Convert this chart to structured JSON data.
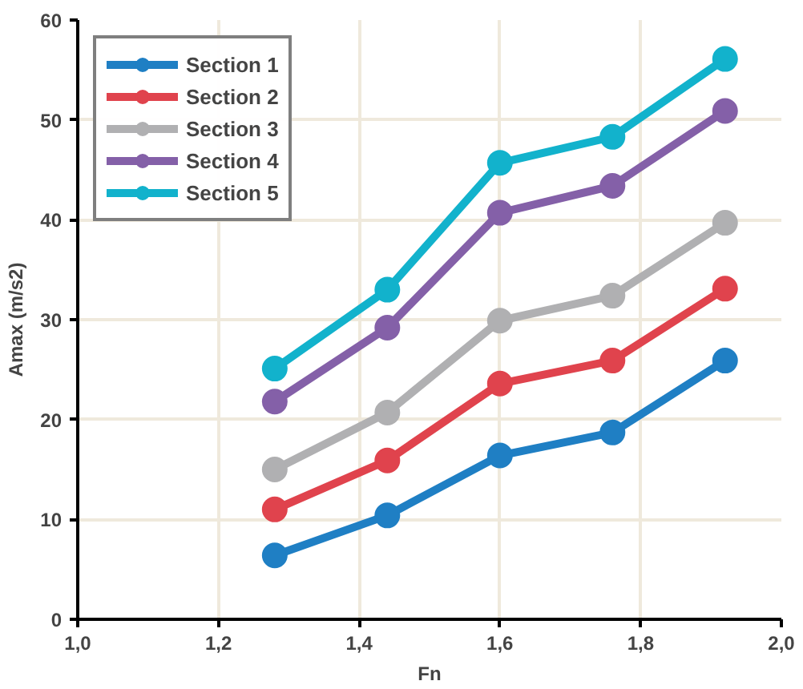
{
  "chart_data": {
    "type": "line",
    "xlabel": "Fn",
    "ylabel": "Amax (m/s2)",
    "x": [
      1.28,
      1.44,
      1.6,
      1.76,
      1.92
    ],
    "series": [
      {
        "name": "Section 1",
        "color": "#1f7fc4",
        "values": [
          6.4,
          10.4,
          16.4,
          18.7,
          25.9
        ]
      },
      {
        "name": "Section 2",
        "color": "#e0434d",
        "values": [
          11.0,
          15.9,
          23.6,
          25.9,
          33.1
        ]
      },
      {
        "name": "Section 3",
        "color": "#b0b0b2",
        "values": [
          15.0,
          20.7,
          29.9,
          32.4,
          39.7
        ]
      },
      {
        "name": "Section 4",
        "color": "#8460a8",
        "values": [
          21.8,
          29.2,
          40.7,
          43.4,
          50.9
        ]
      },
      {
        "name": "Section 5",
        "color": "#12b2cc",
        "values": [
          25.1,
          33.0,
          45.7,
          48.3,
          56.1
        ]
      }
    ],
    "xlim": [
      1.0,
      2.0
    ],
    "xticks": [
      {
        "value": 1.0,
        "label": "1,0"
      },
      {
        "value": 1.2,
        "label": "1,2"
      },
      {
        "value": 1.4,
        "label": "1,4"
      },
      {
        "value": 1.6,
        "label": "1,6"
      },
      {
        "value": 1.8,
        "label": "1,8"
      },
      {
        "value": 2.0,
        "label": "2,0"
      }
    ],
    "ylim": [
      0,
      60
    ],
    "yticks": [
      0,
      10,
      20,
      30,
      40,
      50,
      60
    ],
    "grid": true,
    "legend": "top left",
    "marker": "circle",
    "line_style": "solid"
  }
}
